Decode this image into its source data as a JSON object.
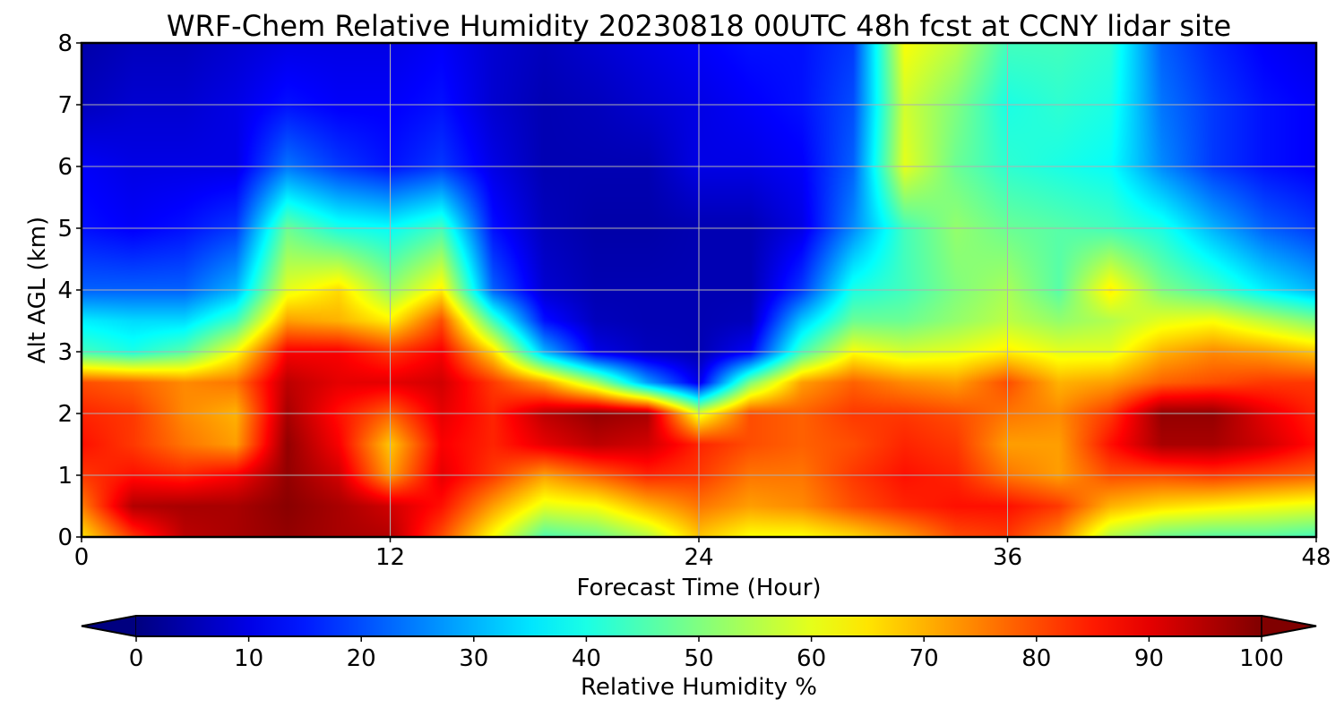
{
  "chart_data": {
    "type": "heatmap",
    "title": "WRF-Chem Relative Humidity 20230818 00UTC 48h fcst at CCNY lidar site",
    "xlabel": "Forecast Time (Hour)",
    "ylabel": "Alt AGL (km)",
    "xlim": [
      0,
      48
    ],
    "ylim": [
      0,
      8
    ],
    "xticks": [
      0,
      12,
      24,
      36,
      48
    ],
    "yticks": [
      0,
      1,
      2,
      3,
      4,
      5,
      6,
      7,
      8
    ],
    "grid": true,
    "colormap": "jet",
    "colorbar": {
      "label": "Relative Humidity %",
      "range": [
        0,
        100
      ],
      "ticks": [
        0,
        10,
        20,
        30,
        40,
        50,
        60,
        70,
        80,
        90,
        100
      ],
      "extend": "both",
      "orientation": "horizontal",
      "placement": "bottom"
    },
    "x": [
      0,
      2,
      4,
      6,
      8,
      10,
      12,
      14,
      16,
      18,
      20,
      22,
      24,
      26,
      28,
      30,
      32,
      34,
      36,
      38,
      40,
      42,
      44,
      46,
      48
    ],
    "y": [
      0,
      0.5,
      1,
      1.5,
      2,
      2.5,
      3,
      3.5,
      4,
      5,
      6,
      7,
      8
    ],
    "values": [
      [
        65,
        82,
        94,
        96,
        98,
        96,
        95,
        80,
        62,
        45,
        48,
        55,
        68,
        62,
        62,
        66,
        72,
        80,
        82,
        74,
        55,
        48,
        46,
        46,
        44
      ],
      [
        75,
        95,
        96,
        96,
        99,
        96,
        92,
        86,
        72,
        60,
        62,
        70,
        76,
        72,
        74,
        80,
        84,
        86,
        86,
        82,
        70,
        66,
        64,
        62,
        60
      ],
      [
        82,
        86,
        84,
        88,
        98,
        92,
        72,
        90,
        82,
        72,
        78,
        84,
        82,
        76,
        76,
        82,
        86,
        84,
        76,
        72,
        80,
        80,
        82,
        80,
        78
      ],
      [
        86,
        82,
        76,
        72,
        98,
        88,
        68,
        88,
        84,
        90,
        94,
        92,
        84,
        80,
        78,
        80,
        84,
        82,
        72,
        72,
        86,
        96,
        96,
        92,
        86
      ],
      [
        84,
        82,
        74,
        70,
        96,
        86,
        78,
        90,
        84,
        94,
        98,
        96,
        60,
        80,
        78,
        82,
        82,
        80,
        76,
        74,
        82,
        98,
        98,
        90,
        84
      ],
      [
        80,
        78,
        74,
        76,
        94,
        90,
        90,
        92,
        82,
        72,
        54,
        28,
        10,
        50,
        72,
        78,
        74,
        72,
        80,
        70,
        72,
        78,
        80,
        82,
        82
      ],
      [
        44,
        40,
        46,
        62,
        88,
        88,
        82,
        88,
        66,
        30,
        10,
        6,
        5,
        12,
        44,
        62,
        58,
        60,
        64,
        60,
        60,
        70,
        74,
        72,
        68
      ],
      [
        36,
        34,
        34,
        44,
        72,
        70,
        64,
        80,
        44,
        14,
        6,
        5,
        5,
        6,
        32,
        48,
        48,
        52,
        56,
        52,
        55,
        60,
        62,
        56,
        50
      ],
      [
        22,
        22,
        22,
        30,
        60,
        66,
        52,
        64,
        22,
        8,
        5,
        5,
        5,
        5,
        18,
        40,
        44,
        50,
        54,
        46,
        64,
        50,
        44,
        36,
        30
      ],
      [
        14,
        12,
        14,
        18,
        48,
        40,
        38,
        44,
        14,
        6,
        4,
        4,
        5,
        5,
        10,
        26,
        44,
        52,
        48,
        46,
        44,
        40,
        30,
        22,
        18
      ],
      [
        12,
        10,
        10,
        10,
        24,
        18,
        14,
        18,
        10,
        5,
        5,
        5,
        10,
        10,
        12,
        22,
        60,
        48,
        42,
        40,
        38,
        26,
        18,
        14,
        12
      ],
      [
        6,
        8,
        8,
        10,
        14,
        12,
        12,
        14,
        8,
        5,
        6,
        8,
        10,
        12,
        14,
        20,
        58,
        50,
        40,
        42,
        40,
        24,
        18,
        14,
        12
      ],
      [
        4,
        6,
        6,
        8,
        10,
        10,
        10,
        12,
        8,
        6,
        8,
        10,
        12,
        14,
        14,
        18,
        62,
        56,
        44,
        44,
        42,
        22,
        16,
        12,
        10
      ]
    ]
  }
}
